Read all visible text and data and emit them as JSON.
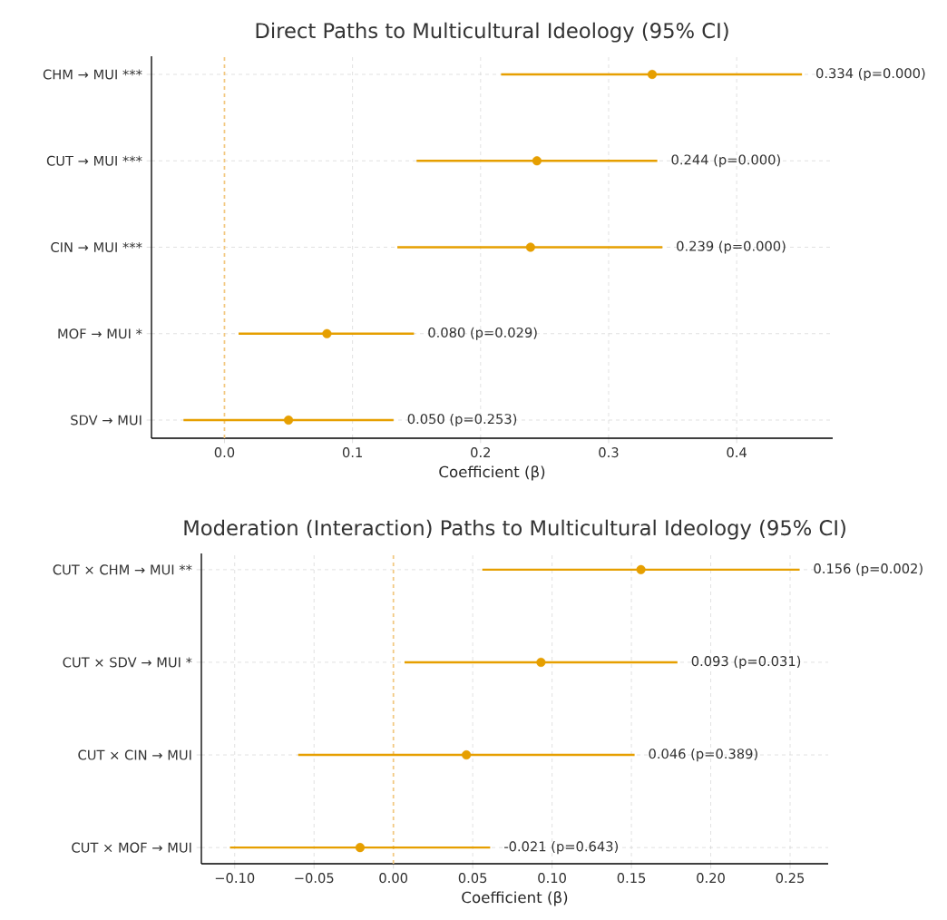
{
  "chart_data": [
    {
      "type": "scatter",
      "orientation": "horizontal",
      "title": "Direct Paths to Multicultural Ideology (95% CI)",
      "xlabel": "Coefficient (β)",
      "categories": [
        "CHM → MUI ***",
        "CUT → MUI ***",
        "CIN → MUI ***",
        "MOF → MUI *",
        "SDV → MUI"
      ],
      "values": [
        0.334,
        0.244,
        0.239,
        0.08,
        0.05
      ],
      "errors": [
        [
          0.216,
          0.451
        ],
        [
          0.15,
          0.338
        ],
        [
          0.135,
          0.342
        ],
        [
          0.011,
          0.148
        ],
        [
          -0.032,
          0.132
        ]
      ],
      "annotations": [
        {
          "text": "0.334 (p=0.000)",
          "x": 0.451,
          "y": "CHM → MUI ***"
        },
        {
          "text": "0.244 (p=0.000)",
          "x": 0.338,
          "y": "CUT → MUI ***"
        },
        {
          "text": "0.239 (p=0.000)",
          "x": 0.342,
          "y": "CIN → MUI ***"
        },
        {
          "text": "0.080 (p=0.029)",
          "x": 0.148,
          "y": "MOF → MUI *"
        },
        {
          "text": "0.050 (p=0.253)",
          "x": 0.132,
          "y": "SDV → MUI"
        }
      ],
      "color": "#e69f00",
      "marker": "circle",
      "grid": true,
      "xlim": [
        -0.057,
        0.475
      ],
      "xticks": [
        {
          "value": 0.0,
          "label": "0.0"
        },
        {
          "value": 0.1,
          "label": "0.1"
        },
        {
          "value": 0.2,
          "label": "0.2"
        },
        {
          "value": 0.3,
          "label": "0.3"
        },
        {
          "value": 0.4,
          "label": "0.4"
        }
      ],
      "ref_lines": [
        {
          "axis": "x",
          "value": 0,
          "color": "#f2c880",
          "line_style": "dashed"
        }
      ]
    },
    {
      "type": "scatter",
      "orientation": "horizontal",
      "title": "Moderation (Interaction) Paths to Multicultural Ideology (95% CI)",
      "xlabel": "Coefficient (β)",
      "categories": [
        "CUT × CHM → MUI **",
        "CUT × SDV → MUI *",
        "CUT × CIN → MUI",
        "CUT × MOF → MUI"
      ],
      "values": [
        0.156,
        0.093,
        0.046,
        -0.021
      ],
      "errors": [
        [
          0.056,
          0.256
        ],
        [
          0.007,
          0.179
        ],
        [
          -0.06,
          0.152
        ],
        [
          -0.103,
          0.061
        ]
      ],
      "annotations": [
        {
          "text": "0.156 (p=0.002)",
          "x": 0.256,
          "y": "CUT × CHM → MUI **"
        },
        {
          "text": "0.093 (p=0.031)",
          "x": 0.179,
          "y": "CUT × SDV → MUI *"
        },
        {
          "text": "0.046 (p=0.389)",
          "x": 0.152,
          "y": "CUT × CIN → MUI"
        },
        {
          "text": "-0.021 (p=0.643)",
          "x": 0.061,
          "y": "CUT × MOF → MUI"
        }
      ],
      "color": "#e69f00",
      "marker": "circle",
      "grid": true,
      "xlim": [
        -0.121,
        0.274
      ],
      "xticks": [
        {
          "value": -0.1,
          "label": "−0.10"
        },
        {
          "value": -0.05,
          "label": "−0.05"
        },
        {
          "value": 0.0,
          "label": "0.00"
        },
        {
          "value": 0.05,
          "label": "0.05"
        },
        {
          "value": 0.1,
          "label": "0.10"
        },
        {
          "value": 0.15,
          "label": "0.15"
        },
        {
          "value": 0.2,
          "label": "0.20"
        },
        {
          "value": 0.25,
          "label": "0.25"
        }
      ],
      "ref_lines": [
        {
          "axis": "x",
          "value": 0,
          "color": "#f2c880",
          "line_style": "dashed"
        }
      ]
    }
  ]
}
